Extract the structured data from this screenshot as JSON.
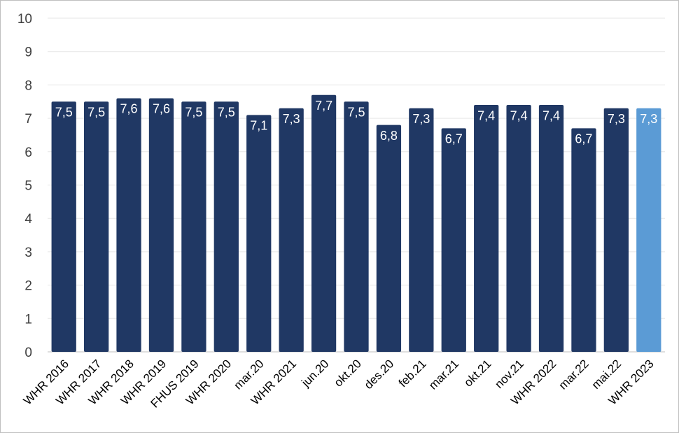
{
  "chart_data": {
    "type": "bar",
    "title": "",
    "xlabel": "",
    "ylabel": "",
    "ylim": [
      0,
      10
    ],
    "yticks": [
      0,
      1,
      2,
      3,
      4,
      5,
      6,
      7,
      8,
      9,
      10
    ],
    "grid": true,
    "categories": [
      "WHR 2016",
      "WHR 2017",
      "WHR 2018",
      "WHR 2019",
      "FHUS 2019",
      "WHR 2020",
      "mar.20",
      "WHR 2021",
      "jun.20",
      "okt.20",
      "des.20",
      "feb.21",
      "mar.21",
      "okt.21",
      "nov.21",
      "WHR 2022",
      "mar.22",
      "mai.22",
      "WHR 2023"
    ],
    "values": [
      7.5,
      7.5,
      7.6,
      7.6,
      7.5,
      7.5,
      7.1,
      7.3,
      7.7,
      7.5,
      6.8,
      7.3,
      6.7,
      7.4,
      7.4,
      7.4,
      6.7,
      7.3,
      7.3
    ],
    "data_labels": [
      "7,5",
      "7,5",
      "7,6",
      "7,6",
      "7,5",
      "7,5",
      "7,1",
      "7,3",
      "7,7",
      "7,5",
      "6,8",
      "7,3",
      "6,7",
      "7,4",
      "7,4",
      "7,4",
      "6,7",
      "7,3",
      "7,3"
    ],
    "colors": {
      "default": "#203864",
      "highlight": "#5b9bd5"
    },
    "highlight_index": 18
  }
}
